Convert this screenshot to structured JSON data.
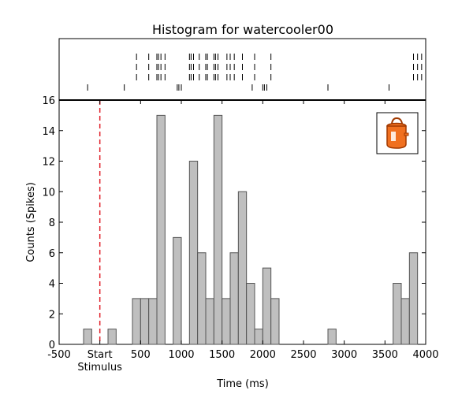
{
  "chart_data": {
    "type": "bar",
    "title": "Histogram for watercooler00",
    "xlabel": "Time (ms)",
    "ylabel": "Counts (Spikes)",
    "xlim": [
      -500,
      4000
    ],
    "ylim": [
      0,
      16
    ],
    "xticks": [
      -500,
      0,
      500,
      1000,
      1500,
      2000,
      2500,
      3000,
      3500,
      4000
    ],
    "xtick_labels": [
      "-500",
      "Start",
      "500",
      "1000",
      "1500",
      "2000",
      "2500",
      "3000",
      "3500",
      "4000"
    ],
    "yticks": [
      0,
      2,
      4,
      6,
      8,
      10,
      12,
      14,
      16
    ],
    "stimulus_label": "Stimulus",
    "stimulus_time": 0,
    "bin_width": 100,
    "bins": [
      {
        "start": -200,
        "count": 1
      },
      {
        "start": 100,
        "count": 1
      },
      {
        "start": 400,
        "count": 3
      },
      {
        "start": 500,
        "count": 3
      },
      {
        "start": 600,
        "count": 3
      },
      {
        "start": 700,
        "count": 15
      },
      {
        "start": 900,
        "count": 7
      },
      {
        "start": 1100,
        "count": 12
      },
      {
        "start": 1200,
        "count": 6
      },
      {
        "start": 1300,
        "count": 3
      },
      {
        "start": 1400,
        "count": 15
      },
      {
        "start": 1500,
        "count": 3
      },
      {
        "start": 1600,
        "count": 6
      },
      {
        "start": 1700,
        "count": 10
      },
      {
        "start": 1800,
        "count": 4
      },
      {
        "start": 1900,
        "count": 1
      },
      {
        "start": 2000,
        "count": 5
      },
      {
        "start": 2100,
        "count": 3
      },
      {
        "start": 2800,
        "count": 1
      },
      {
        "start": 3600,
        "count": 4
      },
      {
        "start": 3700,
        "count": 3
      },
      {
        "start": 3800,
        "count": 6
      }
    ],
    "raster_trials": [
      [
        450,
        600,
        700,
        720,
        750,
        800,
        1100,
        1120,
        1150,
        1220,
        1300,
        1320,
        1400,
        1420,
        1450,
        1560,
        1600,
        1650,
        1750,
        1900,
        2100,
        3850,
        3900,
        3950
      ],
      [
        450,
        600,
        700,
        720,
        750,
        800,
        1100,
        1120,
        1150,
        1220,
        1300,
        1320,
        1400,
        1420,
        1450,
        1560,
        1600,
        1650,
        1750,
        1900,
        2100,
        3850,
        3900,
        3950
      ],
      [
        450,
        600,
        700,
        720,
        750,
        800,
        1100,
        1120,
        1150,
        1220,
        1300,
        1320,
        1400,
        1420,
        1450,
        1560,
        1600,
        1650,
        1750,
        1900,
        2100,
        3850,
        3900,
        3950
      ],
      [
        -150,
        300,
        950,
        970,
        1000,
        1870,
        2000,
        2020,
        2050,
        2800,
        3550
      ]
    ],
    "grid": false,
    "colors": {
      "bar_fill": "#bfbfbf",
      "bar_edge": "#555555",
      "stimulus_line": "#e0202a",
      "raster": "#000000",
      "icon_body": "#f07020",
      "icon_outline": "#a03800"
    },
    "icon": "watercooler-icon"
  }
}
